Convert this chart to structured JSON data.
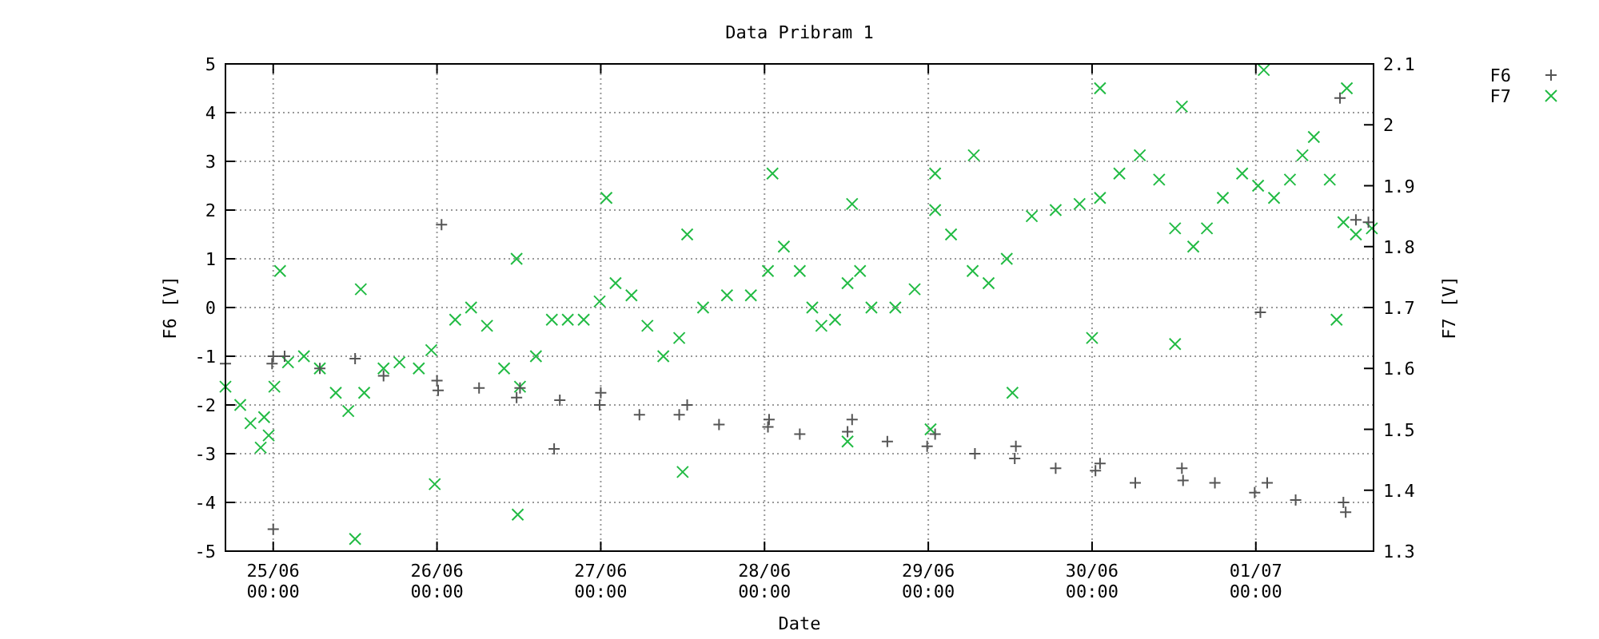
{
  "chart_data": {
    "type": "scatter",
    "title": "Data Pribram 1",
    "xlabel": "Date",
    "ylabel": "F6 [V]",
    "y2label": "F7 [V]",
    "xlim": [
      "--06-24T17:00",
      "--07-01T17:15"
    ],
    "xticks": [
      {
        "value": "--06-25T00:00",
        "label": "25/06\n00:00"
      },
      {
        "value": "--06-26T00:00",
        "label": "26/06\n00:00"
      },
      {
        "value": "--06-27T00:00",
        "label": "27/06\n00:00"
      },
      {
        "value": "--06-28T00:00",
        "label": "28/06\n00:00"
      },
      {
        "value": "--06-29T00:00",
        "label": "29/06\n00:00"
      },
      {
        "value": "--06-30T00:00",
        "label": "30/06\n00:00"
      },
      {
        "value": "--07-01T00:00",
        "label": "01/07\n00:00"
      }
    ],
    "ylim": [
      -5,
      5
    ],
    "yticks": [
      -5,
      -4,
      -3,
      -2,
      -1,
      0,
      1,
      2,
      3,
      4,
      5
    ],
    "y2lim": [
      1.3,
      2.1
    ],
    "y2ticks": [
      {
        "value": 1.3,
        "label": "1.3"
      },
      {
        "value": 1.4,
        "label": "1.4"
      },
      {
        "value": 1.5,
        "label": "1.5"
      },
      {
        "value": 1.6,
        "label": "1.6"
      },
      {
        "value": 1.7,
        "label": "1.7"
      },
      {
        "value": 1.8,
        "label": "1.8"
      },
      {
        "value": 1.9,
        "label": "1.9"
      },
      {
        "value": 2.0,
        "label": "2"
      },
      {
        "value": 2.1,
        "label": "2.1"
      }
    ],
    "grid": true,
    "legend": "top right",
    "series": [
      {
        "name": "F6",
        "color": "#555555",
        "marker": "cross",
        "x": [
          "--06-24T17:00",
          "--06-24T23:50",
          "--06-25T06:50",
          "--06-25T16:10",
          "--06-26T00:00",
          "--06-26T06:10",
          "--06-26T12:10",
          "--06-26T18:00",
          "--06-26T23:50",
          "--06-27T05:40",
          "--06-27T11:30",
          "--06-27T17:20",
          "--06-28T00:30",
          "--06-28T05:10",
          "--06-28T12:10",
          "--06-28T18:00",
          "--06-28T23:50",
          "--06-29T06:50",
          "--06-29T12:40",
          "--06-29T18:40",
          "--06-30T00:30",
          "--06-30T06:20",
          "--06-30T13:20",
          "--06-30T18:00",
          "--06-30T23:50",
          "--07-01T05:50",
          "--07-01T12:50",
          "--06-25T00:00",
          "--06-26T00:40",
          "--06-26T17:10",
          "--07-01T00:40",
          "--07-01T12:20",
          "--06-25T00:00",
          "--06-25T01:40",
          "--06-25T12:00",
          "--06-26T00:10",
          "--06-26T11:40",
          "--06-27T00:00",
          "--06-27T12:40",
          "--06-28T00:40",
          "--06-28T12:50",
          "--06-29T01:00",
          "--06-29T12:50",
          "--06-30T01:10",
          "--06-30T13:10",
          "--07-01T01:40",
          "--07-01T13:10",
          "--07-01T14:40",
          "--07-01T16:30"
        ],
        "values": [
          -1.15,
          -1.15,
          -1.25,
          -1.4,
          -1.5,
          -1.65,
          -1.65,
          -1.9,
          -2.0,
          -2.2,
          -2.2,
          -2.4,
          -2.45,
          -2.6,
          -2.55,
          -2.75,
          -2.85,
          -3.0,
          -3.1,
          -3.3,
          -3.35,
          -3.6,
          -3.55,
          -3.6,
          -3.8,
          -3.95,
          -4.0,
          -4.55,
          1.7,
          -2.9,
          -0.1,
          4.3,
          -1.0,
          -1.0,
          -1.05,
          -1.7,
          -1.85,
          -1.75,
          -2.0,
          -2.3,
          -2.3,
          -2.6,
          -2.85,
          -3.2,
          -3.3,
          -3.6,
          -4.2,
          1.8,
          1.75
        ]
      },
      {
        "name": "F7",
        "color": "#22bb44",
        "marker": "x",
        "axis": "y2",
        "x": [
          "--06-24T17:00",
          "--06-24T19:10",
          "--06-24T20:40",
          "--06-24T22:40",
          "--06-25T00:10",
          "--06-25T02:10",
          "--06-25T04:30",
          "--06-25T06:50",
          "--06-25T09:10",
          "--06-25T11:00",
          "--06-25T13:20",
          "--06-25T16:10",
          "--06-25T18:30",
          "--06-25T21:20",
          "--06-25T23:10",
          "--06-26T02:40",
          "--06-26T05:00",
          "--06-26T07:20",
          "--06-26T09:50",
          "--06-26T12:10",
          "--06-26T14:30",
          "--06-26T16:50",
          "--06-26T19:10",
          "--06-26T21:30",
          "--06-26T23:50",
          "--06-27T02:10",
          "--06-27T04:30",
          "--06-27T06:50",
          "--06-27T09:10",
          "--06-27T11:30",
          "--06-27T15:00",
          "--06-27T18:30",
          "--06-27T22:00",
          "--06-28T00:30",
          "--06-28T02:50",
          "--06-28T05:10",
          "--06-28T07:00",
          "--06-28T08:20",
          "--06-28T10:20",
          "--06-28T12:10",
          "--06-28T14:00",
          "--06-28T15:40",
          "--06-28T19:10",
          "--06-28T22:00",
          "--06-29T01:00",
          "--06-29T03:20",
          "--06-29T06:30",
          "--06-29T08:50",
          "--06-29T11:30",
          "--06-29T15:10",
          "--06-29T18:40",
          "--06-29T22:10",
          "--06-30T01:10",
          "--06-30T04:00",
          "--06-30T07:00",
          "--06-30T09:50",
          "--06-30T12:10",
          "--06-30T14:50",
          "--06-30T16:50",
          "--06-30T19:10",
          "--06-30T22:00",
          "--07-01T00:20",
          "--07-01T02:40",
          "--07-01T05:00",
          "--07-01T06:50",
          "--07-01T08:30",
          "--07-01T10:50",
          "--07-01T12:50",
          "--07-01T14:40",
          "--07-01T17:00",
          "--06-24T23:20",
          "--06-24T22:10",
          "--06-25T01:00",
          "--06-25T12:50",
          "--06-25T12:00",
          "--06-25T23:40",
          "--06-26T11:40",
          "--06-26T11:50",
          "--06-27T00:50",
          "--06-27T12:40",
          "--06-27T12:00",
          "--06-28T01:10",
          "--06-28T12:50",
          "--06-28T12:10",
          "--06-29T01:00",
          "--06-29T00:20",
          "--06-29T06:40",
          "--06-29T12:20",
          "--06-30T01:10",
          "--06-30T00:00",
          "--06-30T13:10",
          "--06-30T12:10",
          "--07-01T01:10",
          "--07-01T11:50",
          "--07-01T13:20"
        ],
        "values": [
          1.57,
          1.54,
          1.51,
          1.52,
          1.57,
          1.61,
          1.62,
          1.6,
          1.56,
          1.53,
          1.56,
          1.6,
          1.61,
          1.6,
          1.63,
          1.68,
          1.7,
          1.67,
          1.6,
          1.57,
          1.62,
          1.68,
          1.68,
          1.68,
          1.71,
          1.74,
          1.72,
          1.67,
          1.62,
          1.65,
          1.7,
          1.72,
          1.72,
          1.76,
          1.8,
          1.76,
          1.7,
          1.67,
          1.68,
          1.74,
          1.76,
          1.7,
          1.7,
          1.73,
          1.86,
          1.82,
          1.76,
          1.74,
          1.78,
          1.85,
          1.86,
          1.87,
          1.88,
          1.92,
          1.95,
          1.91,
          1.83,
          1.8,
          1.83,
          1.88,
          1.92,
          1.9,
          1.88,
          1.91,
          1.95,
          1.98,
          1.91,
          1.84,
          1.82,
          1.83,
          1.49,
          1.47,
          1.76,
          1.73,
          1.32,
          1.41,
          1.78,
          1.36,
          1.88,
          1.82,
          1.43,
          1.92,
          1.87,
          1.48,
          1.92,
          1.5,
          1.95,
          1.56,
          2.06,
          1.65,
          2.03,
          1.64,
          2.09,
          1.68,
          2.06
        ]
      }
    ]
  }
}
